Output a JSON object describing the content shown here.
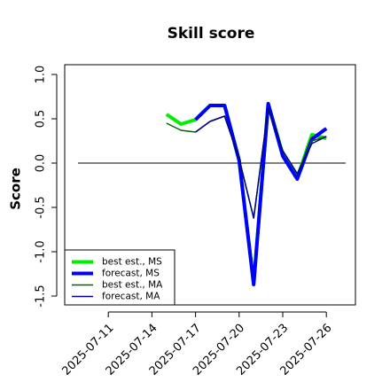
{
  "chart_data": {
    "type": "line",
    "title": "Skill score",
    "y_label": "Score",
    "x": [
      "2025-07-15",
      "2025-07-16",
      "2025-07-17",
      "2025-07-18",
      "2025-07-19",
      "2025-07-20",
      "2025-07-21",
      "2025-07-22",
      "2025-07-23",
      "2025-07-24",
      "2025-07-25",
      "2025-07-26"
    ],
    "series": [
      {
        "name": "best est., MS",
        "color": "#00ee00",
        "width": 4,
        "values": [
          0.55,
          0.44,
          0.49,
          0.65,
          0.65,
          0.03,
          -1.35,
          0.67,
          0.1,
          -0.17,
          0.32,
          0.28
        ]
      },
      {
        "name": "forecast, MS",
        "color": "#0000ff",
        "width": 4,
        "values": [
          null,
          null,
          0.49,
          0.65,
          0.65,
          0.03,
          -1.37,
          0.67,
          0.08,
          -0.18,
          0.27,
          0.39
        ]
      },
      {
        "name": "best est., MA",
        "color": "#006400",
        "width": 1.5,
        "values": [
          0.45,
          0.37,
          0.35,
          0.47,
          0.53,
          0.05,
          -0.62,
          0.62,
          0.14,
          -0.12,
          0.25,
          0.3
        ]
      },
      {
        "name": "forecast, MA",
        "color": "#00008b",
        "width": 1.5,
        "values": [
          null,
          null,
          0.35,
          0.47,
          0.53,
          0.05,
          -0.62,
          0.62,
          0.14,
          -0.12,
          0.22,
          0.3
        ]
      }
    ],
    "xlim": [
      "2025-07-08",
      "2025-07-28"
    ],
    "xticks": [
      "2025-07-11",
      "2025-07-14",
      "2025-07-17",
      "2025-07-20",
      "2025-07-23",
      "2025-07-26"
    ],
    "xtick_colors": [
      "#000000",
      "#000000",
      "#228b22",
      "#000000",
      "#000000",
      "#000000"
    ],
    "ylim": [
      -1.6,
      1.11
    ],
    "yticks": [
      -1.5,
      {
        "value": -1,
        "label": "-1.0"
      },
      -0.5,
      {
        "value": 0,
        "label": "0.0"
      },
      0.5,
      {
        "value": 1,
        "label": "1.0"
      }
    ],
    "reference_line": 0,
    "legend": "bottom-left"
  }
}
